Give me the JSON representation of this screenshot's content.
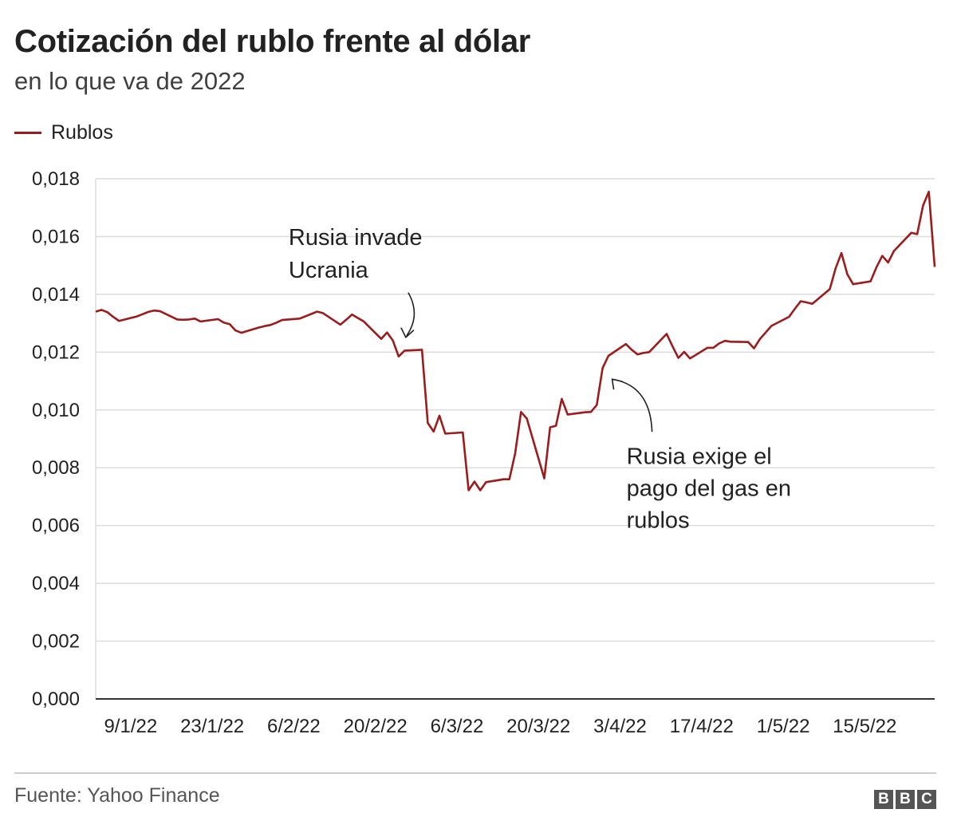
{
  "title": "Cotización del rublo frente al dólar",
  "subtitle": "en lo que va de 2022",
  "source": "Fuente: Yahoo Finance",
  "logo": [
    "B",
    "B",
    "C"
  ],
  "chart_data": {
    "type": "line",
    "title": "Cotización del rublo frente al dólar",
    "subtitle": "en lo que va de 2022",
    "xlabel": "",
    "ylabel": "",
    "ylim": [
      0,
      0.018
    ],
    "grid": true,
    "legend_position": "top-left",
    "color": "#9b1c1c",
    "y_ticks": [
      "0,000",
      "0,002",
      "0,004",
      "0,006",
      "0,008",
      "0,010",
      "0,012",
      "0,014",
      "0,016",
      "0,018"
    ],
    "x_ticks": [
      "9/1/22",
      "23/1/22",
      "6/2/22",
      "20/2/22",
      "6/3/22",
      "20/3/22",
      "3/4/22",
      "17/4/22",
      "1/5/22",
      "15/5/22"
    ],
    "x_tick_dates": [
      "2022-01-09",
      "2022-01-23",
      "2022-02-06",
      "2022-02-20",
      "2022-03-06",
      "2022-03-20",
      "2022-04-03",
      "2022-04-17",
      "2022-05-01",
      "2022-05-15"
    ],
    "series": [
      {
        "name": "Rublos",
        "x": [
          "2022-01-03",
          "2022-01-04",
          "2022-01-05",
          "2022-01-06",
          "2022-01-07",
          "2022-01-10",
          "2022-01-11",
          "2022-01-12",
          "2022-01-13",
          "2022-01-14",
          "2022-01-17",
          "2022-01-18",
          "2022-01-19",
          "2022-01-20",
          "2022-01-21",
          "2022-01-24",
          "2022-01-25",
          "2022-01-26",
          "2022-01-27",
          "2022-01-28",
          "2022-01-31",
          "2022-02-01",
          "2022-02-02",
          "2022-02-03",
          "2022-02-04",
          "2022-02-07",
          "2022-02-08",
          "2022-02-09",
          "2022-02-10",
          "2022-02-11",
          "2022-02-14",
          "2022-02-15",
          "2022-02-16",
          "2022-02-17",
          "2022-02-18",
          "2022-02-21",
          "2022-02-22",
          "2022-02-23",
          "2022-02-24",
          "2022-02-25",
          "2022-02-28",
          "2022-03-01",
          "2022-03-02",
          "2022-03-03",
          "2022-03-04",
          "2022-03-07",
          "2022-03-08",
          "2022-03-09",
          "2022-03-10",
          "2022-03-11",
          "2022-03-14",
          "2022-03-15",
          "2022-03-16",
          "2022-03-17",
          "2022-03-18",
          "2022-03-21",
          "2022-03-22",
          "2022-03-23",
          "2022-03-24",
          "2022-03-25",
          "2022-03-28",
          "2022-03-29",
          "2022-03-30",
          "2022-03-31",
          "2022-04-01",
          "2022-04-04",
          "2022-04-05",
          "2022-04-06",
          "2022-04-07",
          "2022-04-08",
          "2022-04-11",
          "2022-04-12",
          "2022-04-13",
          "2022-04-14",
          "2022-04-15",
          "2022-04-18",
          "2022-04-19",
          "2022-04-20",
          "2022-04-21",
          "2022-04-22",
          "2022-04-25",
          "2022-04-26",
          "2022-04-27",
          "2022-04-28",
          "2022-04-29",
          "2022-05-02",
          "2022-05-03",
          "2022-05-04",
          "2022-05-05",
          "2022-05-06",
          "2022-05-09",
          "2022-05-10",
          "2022-05-11",
          "2022-05-12",
          "2022-05-13",
          "2022-05-16",
          "2022-05-17",
          "2022-05-18",
          "2022-05-19",
          "2022-05-20",
          "2022-05-23",
          "2022-05-24",
          "2022-05-25",
          "2022-05-26",
          "2022-05-27"
        ],
        "values": [
          0.0134,
          0.01346,
          0.01338,
          0.01322,
          0.01308,
          0.01323,
          0.01331,
          0.01339,
          0.01344,
          0.01342,
          0.01313,
          0.01312,
          0.01313,
          0.01316,
          0.01306,
          0.01314,
          0.01302,
          0.01297,
          0.01275,
          0.01267,
          0.01285,
          0.0129,
          0.01294,
          0.01302,
          0.01311,
          0.01316,
          0.01324,
          0.01332,
          0.0134,
          0.01335,
          0.01295,
          0.01312,
          0.0133,
          0.01318,
          0.01306,
          0.01246,
          0.01268,
          0.0124,
          0.01185,
          0.01205,
          0.01208,
          0.00955,
          0.00925,
          0.0098,
          0.00918,
          0.00922,
          0.00722,
          0.00752,
          0.00722,
          0.0075,
          0.0076,
          0.0076,
          0.0085,
          0.00993,
          0.0097,
          0.00763,
          0.0094,
          0.00945,
          0.01038,
          0.00984,
          0.00992,
          0.00993,
          0.01017,
          0.01145,
          0.01187,
          0.01228,
          0.01208,
          0.01192,
          0.01197,
          0.012,
          0.01263,
          0.0122,
          0.0118,
          0.01201,
          0.01178,
          0.01215,
          0.01215,
          0.0123,
          0.01239,
          0.01236,
          0.01235,
          0.01213,
          0.01245,
          0.01268,
          0.01291,
          0.01322,
          0.0135,
          0.01376,
          0.01372,
          0.01367,
          0.01418,
          0.0149,
          0.01543,
          0.0147,
          0.01435,
          0.01445,
          0.01493,
          0.01533,
          0.0151,
          0.0155,
          0.01613,
          0.01608,
          0.01707,
          0.01755,
          0.01495
        ]
      }
    ],
    "annotations": [
      {
        "lines": [
          "Rusia invade",
          "Ucrania"
        ],
        "x": "2022-02-24",
        "y": 0.01185
      },
      {
        "lines": [
          "Rusia exige el",
          "pago del gas en",
          "rublos"
        ],
        "x": "2022-03-31",
        "y": 0.01145
      }
    ]
  }
}
